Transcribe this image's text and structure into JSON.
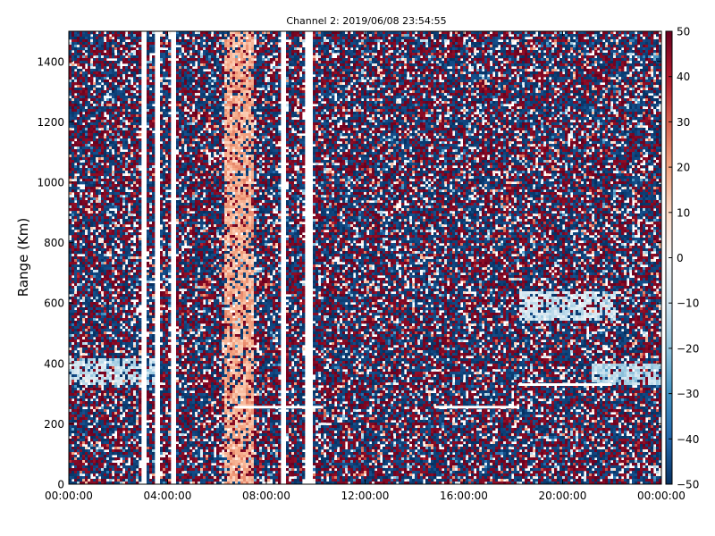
{
  "chart_data": {
    "type": "heatmap",
    "title": "Channel 2: 2019/06/08 23:54:55",
    "xlabel": "",
    "ylabel": "Range (Km)",
    "x_ticks": [
      "00:00:00",
      "04:00:00",
      "08:00:00",
      "12:00:00",
      "16:00:00",
      "20:00:00",
      "00:00:00"
    ],
    "x_range_hours": [
      0,
      24
    ],
    "y_ticks": [
      "0",
      "200",
      "400",
      "600",
      "800",
      "1000",
      "1200",
      "1400"
    ],
    "y_tick_values": [
      0,
      200,
      400,
      600,
      800,
      1000,
      1200,
      1400
    ],
    "ylim": [
      0,
      1500
    ],
    "colorbar": {
      "ticks": [
        "50",
        "40",
        "30",
        "20",
        "10",
        "0",
        "−10",
        "−20",
        "−30",
        "−40",
        "−50"
      ],
      "tick_values": [
        50,
        40,
        30,
        20,
        10,
        0,
        -10,
        -20,
        -30,
        -40,
        -50
      ],
      "range": [
        -50,
        50
      ],
      "colormap_stops": [
        "#053061",
        "#2166ac",
        "#4393c3",
        "#92c5de",
        "#d1e5f0",
        "#f7f7f7",
        "#fddbc7",
        "#f4a582",
        "#d6604d",
        "#b2182b",
        "#67001f"
      ]
    },
    "gaps_hours": [
      [
        2.95,
        3.1
      ],
      [
        3.5,
        3.65
      ],
      [
        4.15,
        4.3
      ],
      [
        8.55,
        8.85
      ],
      [
        9.55,
        9.85
      ]
    ],
    "features": [
      {
        "hours": [
          0,
          3.6
        ],
        "range": [
          330,
          420
        ],
        "value": -12
      },
      {
        "hours": [
          18.2,
          22.2
        ],
        "range": [
          540,
          640
        ],
        "value": -10
      },
      {
        "hours": [
          21.2,
          24
        ],
        "range": [
          330,
          400
        ],
        "value": -15
      },
      {
        "hours": [
          6.3,
          7.5
        ],
        "range": [
          0,
          1500
        ],
        "value": 18
      }
    ],
    "lines": [
      {
        "hours": [
          6.7,
          10.3
        ],
        "range": 255
      },
      {
        "hours": [
          14.8,
          18.2
        ],
        "range": 255
      },
      {
        "hours": [
          18.2,
          22
        ],
        "range": 330
      }
    ],
    "grid": false
  }
}
